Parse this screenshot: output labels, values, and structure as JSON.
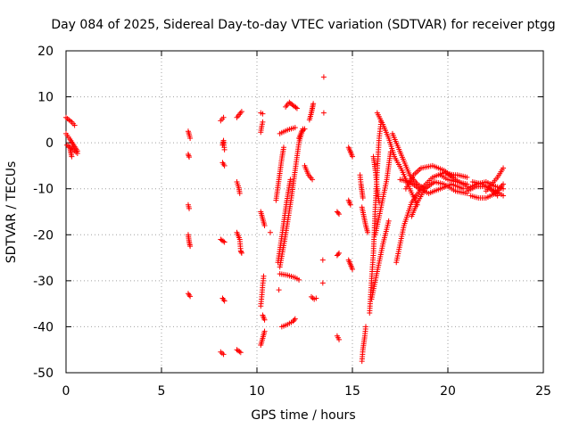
{
  "chart_data": {
    "type": "scatter",
    "title": "Day 084 of 2025, Sidereal Day-to-day VTEC variation (SDTVAR) for receiver ptgg",
    "xlabel": "GPS time / hours",
    "ylabel": "SDTVAR / TECUs",
    "xlim": [
      0,
      25
    ],
    "ylim": [
      -50,
      20
    ],
    "xticks": [
      0,
      5,
      10,
      15,
      20,
      25
    ],
    "yticks": [
      -50,
      -40,
      -30,
      -20,
      -10,
      0,
      10,
      20
    ],
    "grid": true,
    "marker": "+",
    "marker_color": "#ff0000",
    "tracks": [
      [
        [
          0.0,
          5.5
        ],
        [
          0.15,
          5.0
        ],
        [
          0.3,
          4.5
        ],
        [
          0.45,
          3.8
        ]
      ],
      [
        [
          0.0,
          2.0
        ],
        [
          0.2,
          0.8
        ],
        [
          0.4,
          -0.5
        ],
        [
          0.6,
          -1.8
        ]
      ],
      [
        [
          0.05,
          -0.5
        ],
        [
          0.3,
          -1.2
        ],
        [
          0.6,
          -2.3
        ]
      ],
      [
        [
          0.2,
          -1.0
        ],
        [
          0.25,
          -2.0
        ],
        [
          0.3,
          -3.0
        ]
      ],
      [
        [
          6.4,
          2.5
        ],
        [
          6.45,
          1.8
        ],
        [
          6.5,
          1.0
        ]
      ],
      [
        [
          6.4,
          -2.5
        ],
        [
          6.45,
          -3.1
        ]
      ],
      [
        [
          6.4,
          -13.5
        ],
        [
          6.45,
          -14.3
        ]
      ],
      [
        [
          6.4,
          -20.0
        ],
        [
          6.45,
          -21.5
        ],
        [
          6.5,
          -22.5
        ]
      ],
      [
        [
          6.4,
          -32.8
        ],
        [
          6.5,
          -33.4
        ]
      ],
      [
        [
          8.1,
          4.8
        ],
        [
          8.25,
          5.5
        ]
      ],
      [
        [
          8.2,
          -0.5
        ],
        [
          8.25,
          0.5
        ],
        [
          8.3,
          -1.5
        ]
      ],
      [
        [
          8.2,
          -4.3
        ],
        [
          8.3,
          -5.0
        ]
      ],
      [
        [
          8.1,
          -21.0
        ],
        [
          8.3,
          -21.6
        ]
      ],
      [
        [
          8.2,
          -33.8
        ],
        [
          8.3,
          -34.4
        ]
      ],
      [
        [
          8.1,
          -45.5
        ],
        [
          8.25,
          -46.0
        ]
      ],
      [
        [
          8.95,
          5.5
        ],
        [
          9.2,
          6.8
        ]
      ],
      [
        [
          8.95,
          -8.5
        ],
        [
          9.05,
          -9.8
        ],
        [
          9.1,
          -11.0
        ]
      ],
      [
        [
          8.95,
          -19.5
        ],
        [
          9.1,
          -21.0
        ],
        [
          9.15,
          -23.5
        ],
        [
          9.2,
          -24.0
        ]
      ],
      [
        [
          8.95,
          -45.0
        ],
        [
          9.15,
          -45.6
        ]
      ],
      [
        [
          10.2,
          6.5
        ],
        [
          10.3,
          6.3
        ]
      ],
      [
        [
          10.2,
          2.3
        ],
        [
          10.25,
          3.6
        ],
        [
          10.3,
          4.5
        ]
      ],
      [
        [
          10.2,
          -15.0
        ],
        [
          10.3,
          -16.5
        ],
        [
          10.4,
          -18.0
        ]
      ],
      [
        [
          10.35,
          -29.0
        ],
        [
          10.3,
          -31.0
        ],
        [
          10.25,
          -33.5
        ],
        [
          10.2,
          -35.5
        ]
      ],
      [
        [
          10.3,
          -37.5
        ],
        [
          10.4,
          -38.5
        ]
      ],
      [
        [
          10.2,
          -44.0
        ],
        [
          10.3,
          -42.5
        ],
        [
          10.4,
          -41.0
        ]
      ],
      [
        [
          10.7,
          -19.5
        ]
      ],
      [
        [
          11.15,
          -32.0
        ]
      ],
      [
        [
          11.0,
          -12.5
        ],
        [
          11.15,
          -8.0
        ],
        [
          11.3,
          -3.5
        ],
        [
          11.4,
          -1.0
        ]
      ],
      [
        [
          11.2,
          -27.0
        ],
        [
          11.5,
          -20.0
        ],
        [
          11.8,
          -12.0
        ],
        [
          12.0,
          -6.0
        ],
        [
          12.2,
          0.0
        ],
        [
          12.4,
          3.0
        ]
      ],
      [
        [
          11.1,
          -26.0
        ],
        [
          11.35,
          -19.0
        ],
        [
          11.55,
          -13.0
        ],
        [
          11.75,
          -8.0
        ]
      ],
      [
        [
          11.2,
          2.0
        ],
        [
          11.6,
          2.8
        ],
        [
          12.0,
          3.3
        ]
      ],
      [
        [
          11.5,
          7.8
        ],
        [
          11.7,
          8.8
        ],
        [
          11.9,
          8.1
        ],
        [
          12.1,
          7.5
        ]
      ],
      [
        [
          11.2,
          -28.5
        ],
        [
          11.6,
          -28.8
        ],
        [
          12.0,
          -29.3
        ],
        [
          12.2,
          -29.8
        ]
      ],
      [
        [
          11.3,
          -40.0
        ],
        [
          11.6,
          -39.5
        ],
        [
          11.9,
          -38.8
        ],
        [
          12.0,
          -38.3
        ]
      ],
      [
        [
          12.2,
          1.0
        ],
        [
          12.35,
          2.5
        ],
        [
          12.5,
          3.0
        ]
      ],
      [
        [
          12.5,
          -5.0
        ],
        [
          12.7,
          -7.0
        ],
        [
          12.9,
          -8.0
        ]
      ],
      [
        [
          12.75,
          5.0
        ],
        [
          12.85,
          6.5
        ],
        [
          12.9,
          7.5
        ],
        [
          12.95,
          8.5
        ]
      ],
      [
        [
          12.85,
          -33.5
        ],
        [
          13.0,
          -34.0
        ],
        [
          13.1,
          -33.8
        ]
      ],
      [
        [
          13.5,
          14.3
        ]
      ],
      [
        [
          13.5,
          6.5
        ]
      ],
      [
        [
          13.45,
          -25.5
        ]
      ],
      [
        [
          13.45,
          -30.5
        ]
      ],
      [
        [
          14.2,
          -15.0
        ],
        [
          14.3,
          -15.5
        ]
      ],
      [
        [
          14.2,
          -24.5
        ],
        [
          14.3,
          -24.0
        ]
      ],
      [
        [
          14.2,
          -42.0
        ],
        [
          14.3,
          -42.8
        ]
      ],
      [
        [
          14.8,
          -1.0
        ],
        [
          14.9,
          -2.0
        ],
        [
          15.0,
          -3.0
        ]
      ],
      [
        [
          14.8,
          -12.5
        ],
        [
          14.9,
          -13.5
        ]
      ],
      [
        [
          14.8,
          -25.5
        ],
        [
          14.9,
          -26.5
        ],
        [
          15.0,
          -27.5
        ]
      ],
      [
        [
          15.4,
          -7.0
        ],
        [
          15.45,
          -9.0
        ],
        [
          15.5,
          -10.5
        ],
        [
          15.55,
          -12.0
        ]
      ],
      [
        [
          15.5,
          -14.0
        ],
        [
          15.6,
          -16.0
        ],
        [
          15.7,
          -18.0
        ],
        [
          15.8,
          -19.5
        ]
      ],
      [
        [
          15.5,
          -47.5
        ],
        [
          15.55,
          -45.0
        ],
        [
          15.65,
          -42.0
        ],
        [
          15.7,
          -40.0
        ]
      ],
      [
        [
          15.9,
          -37.0
        ],
        [
          16.0,
          -30.0
        ],
        [
          16.1,
          -24.0
        ],
        [
          16.2,
          -14.0
        ],
        [
          16.3,
          -6.0
        ],
        [
          16.4,
          1.0
        ],
        [
          16.5,
          4.5
        ]
      ],
      [
        [
          16.1,
          -3.0
        ],
        [
          16.2,
          -6.0
        ],
        [
          16.3,
          -10.0
        ],
        [
          16.4,
          -13.0
        ]
      ],
      [
        [
          16.0,
          -34.0
        ],
        [
          16.3,
          -28.0
        ],
        [
          16.6,
          -22.0
        ],
        [
          16.9,
          -17.0
        ]
      ],
      [
        [
          16.2,
          -20.0
        ],
        [
          16.5,
          -14.0
        ],
        [
          16.8,
          -8.0
        ],
        [
          17.0,
          -2.0
        ]
      ],
      [
        [
          16.3,
          6.5
        ],
        [
          16.6,
          4.0
        ],
        [
          16.9,
          1.0
        ],
        [
          17.2,
          -3.0
        ],
        [
          17.6,
          -6.0
        ],
        [
          18.0,
          -10.0
        ],
        [
          18.4,
          -13.5
        ]
      ],
      [
        [
          17.1,
          2.0
        ],
        [
          17.4,
          -1.0
        ],
        [
          17.7,
          -4.0
        ],
        [
          18.0,
          -7.0
        ],
        [
          18.4,
          -9.0
        ],
        [
          18.8,
          -10.0
        ]
      ],
      [
        [
          17.3,
          -26.0
        ],
        [
          17.7,
          -18.0
        ],
        [
          18.1,
          -13.0
        ],
        [
          18.6,
          -10.0
        ],
        [
          19.2,
          -7.5
        ],
        [
          19.8,
          -6.5
        ],
        [
          20.3,
          -7.0
        ]
      ],
      [
        [
          17.8,
          -10.0
        ],
        [
          18.2,
          -7.0
        ],
        [
          18.6,
          -5.5
        ],
        [
          19.2,
          -5.0
        ],
        [
          19.8,
          -6.0
        ],
        [
          20.4,
          -8.0
        ],
        [
          21.0,
          -9.5
        ]
      ],
      [
        [
          17.5,
          -8.0
        ],
        [
          18.0,
          -8.5
        ],
        [
          18.5,
          -10.0
        ],
        [
          19.0,
          -11.0
        ],
        [
          19.6,
          -10.0
        ],
        [
          20.2,
          -9.0
        ],
        [
          20.8,
          -10.0
        ]
      ],
      [
        [
          18.1,
          -16.0
        ],
        [
          18.4,
          -13.0
        ],
        [
          18.8,
          -10.0
        ],
        [
          19.3,
          -8.5
        ],
        [
          19.8,
          -9.0
        ],
        [
          20.4,
          -10.5
        ],
        [
          21.0,
          -11.0
        ]
      ],
      [
        [
          19.6,
          -7.0
        ],
        [
          20.0,
          -8.0
        ],
        [
          20.5,
          -8.5
        ],
        [
          21.0,
          -9.0
        ]
      ],
      [
        [
          20.0,
          -7.0
        ],
        [
          20.5,
          -7.0
        ],
        [
          21.0,
          -7.5
        ]
      ],
      [
        [
          21.0,
          -10.0
        ],
        [
          21.5,
          -9.0
        ],
        [
          22.0,
          -8.5
        ],
        [
          22.5,
          -9.5
        ],
        [
          22.9,
          -10.0
        ]
      ],
      [
        [
          21.2,
          -11.5
        ],
        [
          21.6,
          -12.0
        ],
        [
          22.0,
          -12.0
        ],
        [
          22.5,
          -11.0
        ],
        [
          22.9,
          -9.0
        ]
      ],
      [
        [
          21.3,
          -8.5
        ],
        [
          21.8,
          -9.0
        ],
        [
          22.2,
          -10.0
        ],
        [
          22.6,
          -11.5
        ]
      ],
      [
        [
          22.0,
          -10.5
        ],
        [
          22.3,
          -9.0
        ],
        [
          22.6,
          -7.5
        ],
        [
          22.9,
          -5.5
        ]
      ],
      [
        [
          21.0,
          -10.5
        ],
        [
          21.5,
          -9.5
        ],
        [
          22.0,
          -9.5
        ],
        [
          22.5,
          -10.5
        ],
        [
          22.9,
          -11.5
        ]
      ]
    ]
  }
}
